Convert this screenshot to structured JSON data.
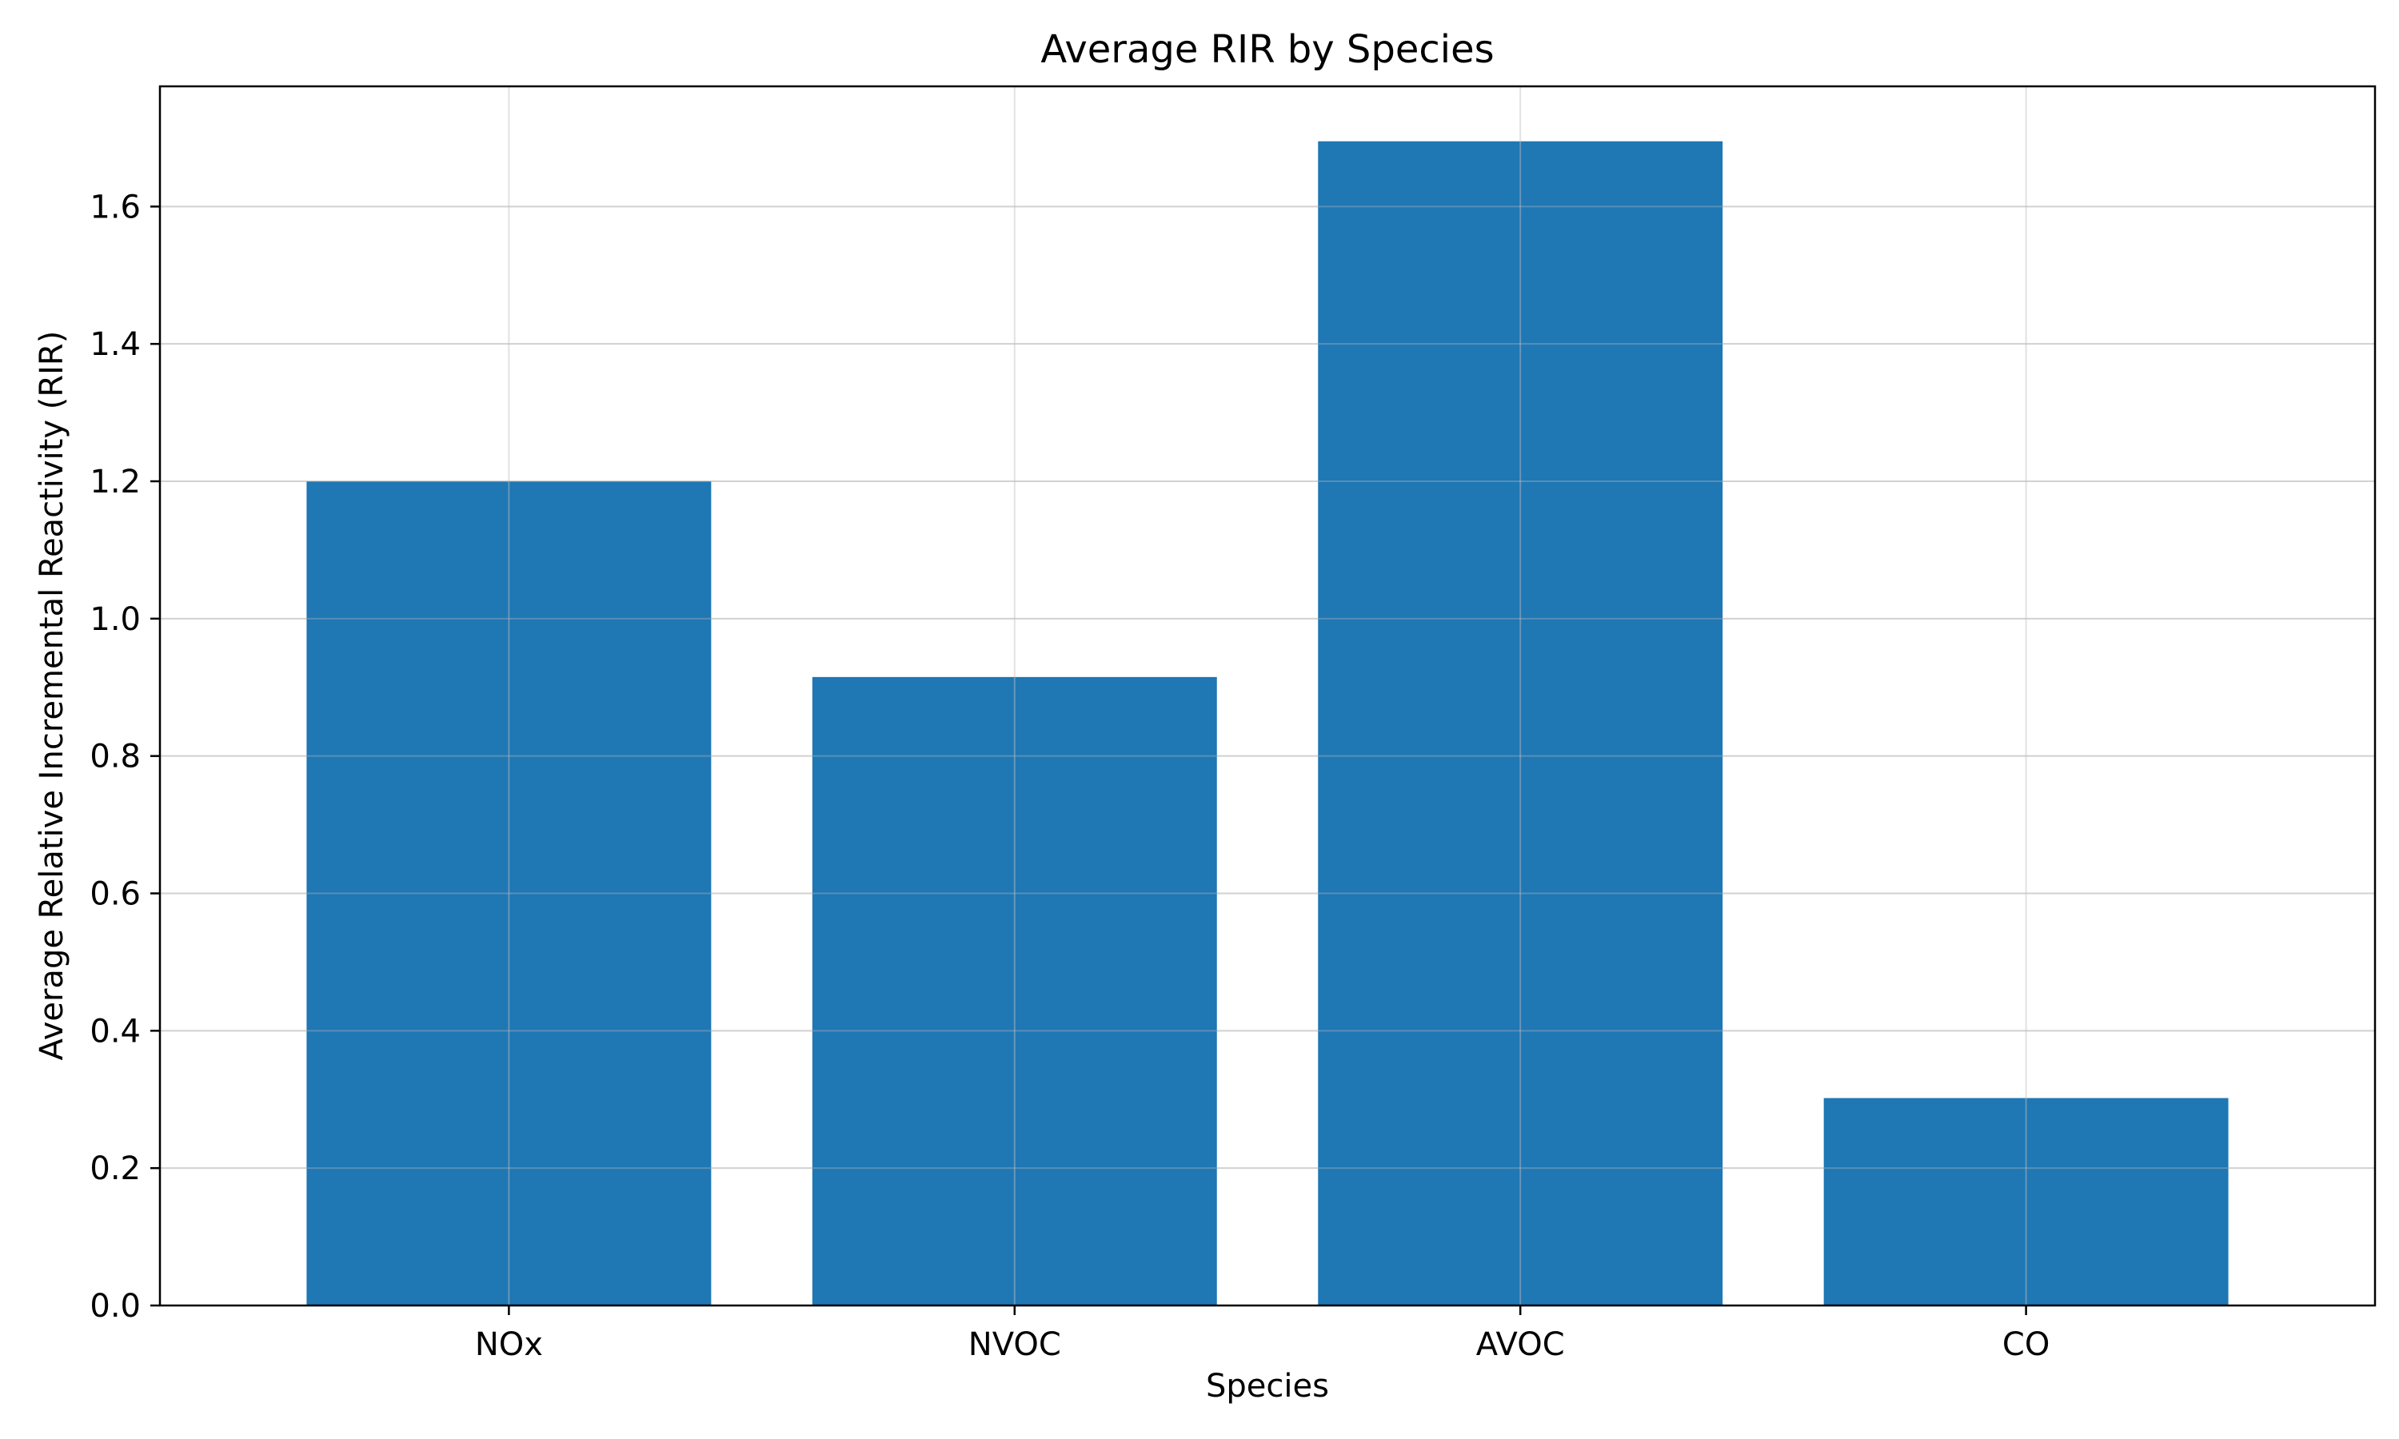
{
  "chart_data": {
    "type": "bar",
    "title": "Average RIR by Species",
    "xlabel": "Species",
    "ylabel": "Average Relative Incremental Reactivity (RIR)",
    "categories": [
      "NOx",
      "NVOC",
      "AVOC",
      "CO"
    ],
    "values": [
      1.2,
      0.915,
      1.695,
      0.302
    ],
    "ylim": [
      0,
      1.775
    ],
    "yticks": [
      "0.0",
      "0.2",
      "0.4",
      "0.6",
      "0.8",
      "1.0",
      "1.2",
      "1.4",
      "1.6"
    ],
    "grid": true,
    "bar_color": "#1f77b4",
    "grid_color": "#dddddd"
  }
}
